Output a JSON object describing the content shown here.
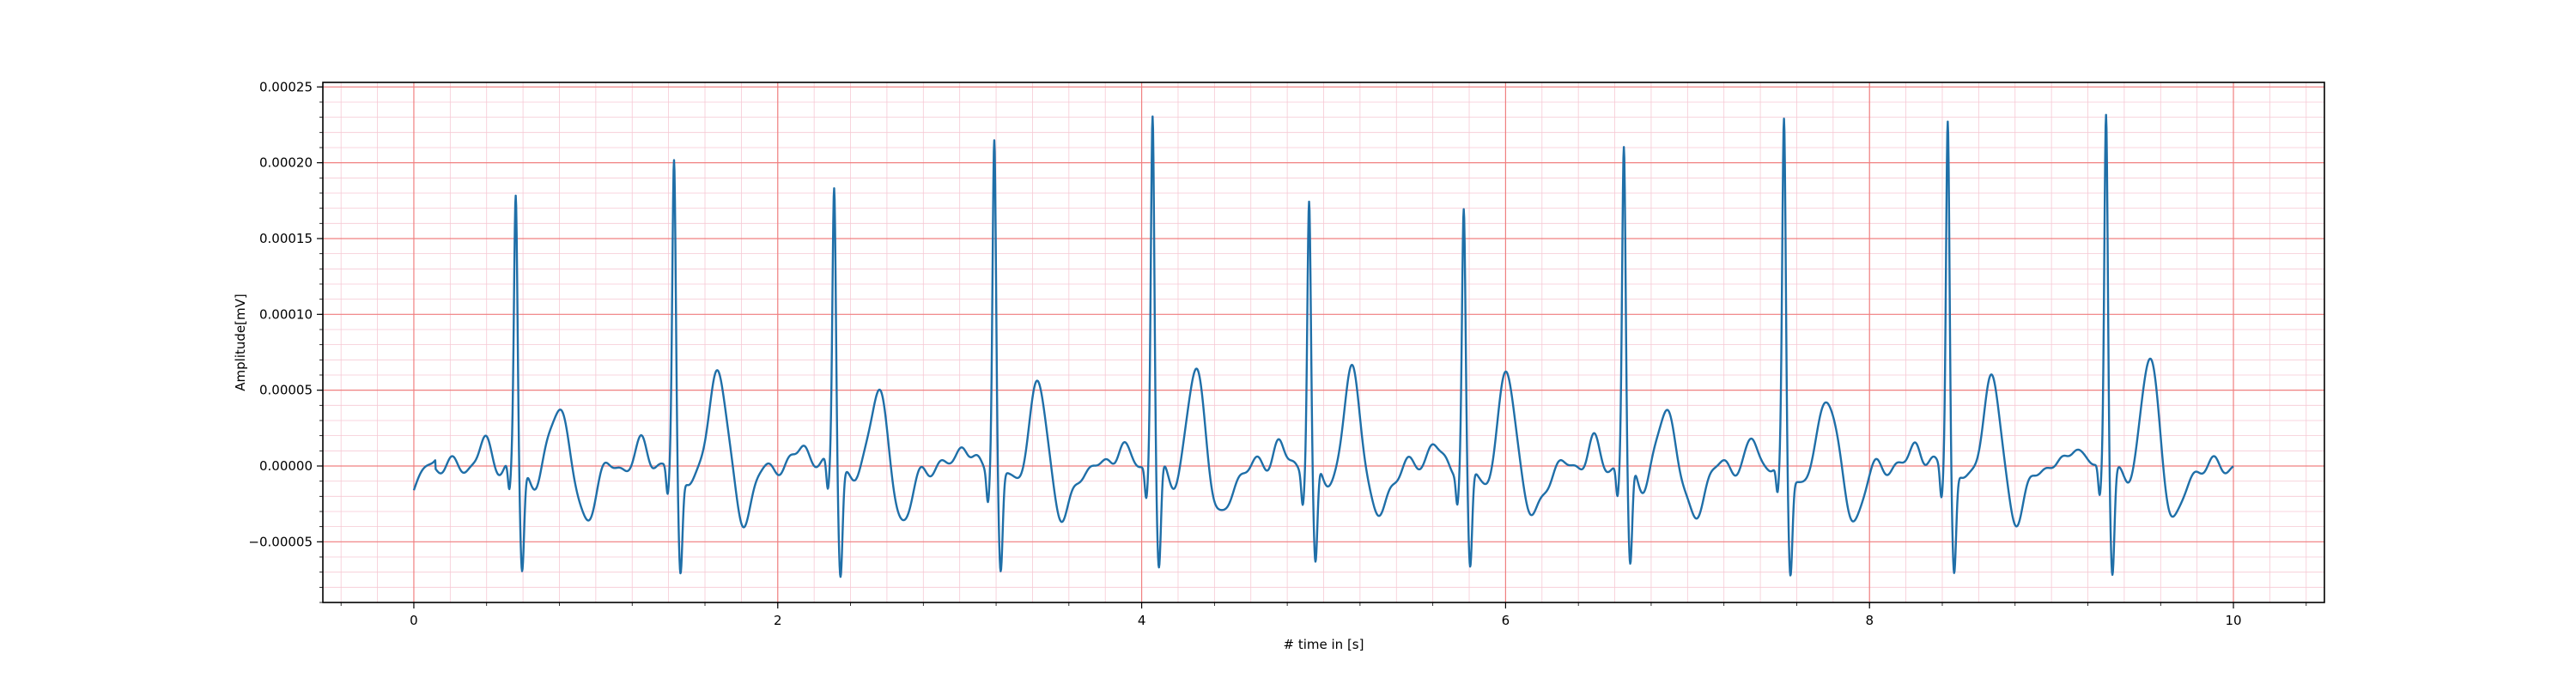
{
  "chart_data": {
    "type": "line",
    "title": "",
    "xlabel": "# time in [s]",
    "ylabel": "Amplitude[mV]",
    "xlim": [
      -0.5,
      10.5
    ],
    "ylim": [
      -9e-05,
      0.000253
    ],
    "x_ticks": [
      0,
      2,
      4,
      6,
      8,
      10
    ],
    "x_tick_labels": [
      "0",
      "2",
      "4",
      "6",
      "8",
      "10"
    ],
    "y_ticks": [
      -5e-05,
      0.0,
      5e-05,
      0.0001,
      0.00015,
      0.0002,
      0.00025
    ],
    "y_tick_labels": [
      "−0.00005",
      "0.00000",
      "0.00005",
      "0.00010",
      "0.00015",
      "0.00020",
      "0.00025"
    ],
    "grid": true,
    "legend": "none",
    "colors": {
      "line": "#1f6fa8",
      "major_grid": "#f08080",
      "minor_grid": "#f6c9d4"
    },
    "series": [
      {
        "beats": [
          {
            "t": 0.56,
            "r": 0.000177,
            "tw": 4.2e-05
          },
          {
            "t": 1.43,
            "r": 0.000199,
            "tw": 6.6e-05
          },
          {
            "t": 2.31,
            "r": 0.000188,
            "tw": 5e-05
          },
          {
            "t": 3.19,
            "r": 0.000217,
            "tw": 5.3e-05
          },
          {
            "t": 4.06,
            "r": 0.000235,
            "tw": 6.2e-05
          },
          {
            "t": 4.92,
            "r": 0.000176,
            "tw": 6.2e-05
          },
          {
            "t": 5.77,
            "r": 0.000168,
            "tw": 6e-05
          },
          {
            "t": 6.65,
            "r": 0.00021,
            "tw": 3.8e-05
          },
          {
            "t": 7.53,
            "r": 0.000224,
            "tw": 4.8e-05
          },
          {
            "t": 8.43,
            "r": 0.00023,
            "tw": 5.8e-05
          },
          {
            "t": 9.3,
            "r": 0.000236,
            "tw": 7e-05
          }
        ],
        "x_start": 0.0,
        "x_end": 10.0
      }
    ]
  }
}
